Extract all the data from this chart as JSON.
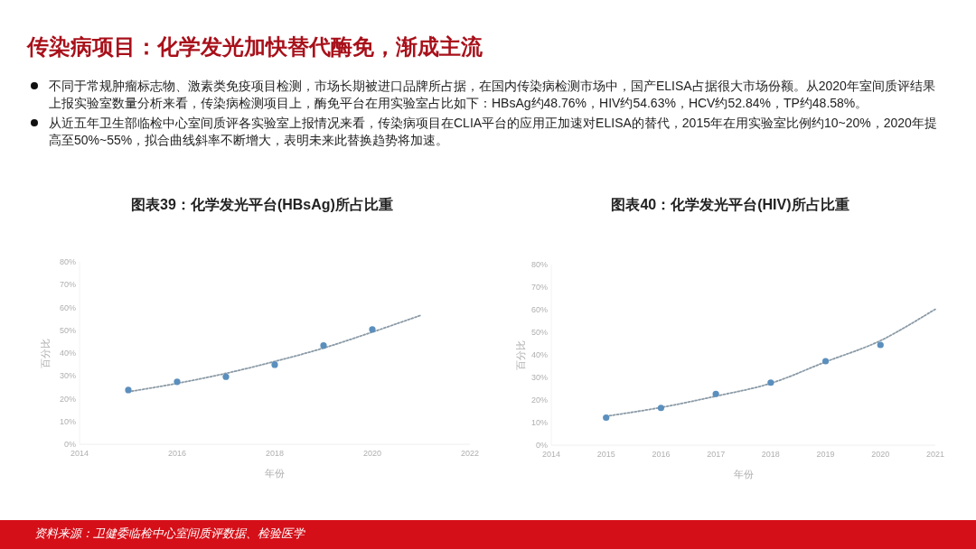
{
  "chart_data": [
    {
      "type": "other",
      "title": "传染病项目：化学发光加快替代酶免，渐成主流",
      "annotations": [
        "不同于常规肿瘤标志物、激素类免疫项目检测，市场长期被进口品牌所占据，在国内传染病检测市场中，国产ELISA占据很大市场份额。从2020年室间质评结果上报实验室数量分析来看，传染病检测项目上，酶免平台在用实验室占比如下：HBsAg约48.76%，HIV约54.63%，HCV约52.84%，TP约48.58%。",
        "从近五年卫生部临检中心室间质评各实验室上报情况来看，传染病项目在CLIA平台的应用正加速对ELISA的替代，2015年在用实验室比例约10~20%，2020年提高至50%~55%，拟合曲线斜率不断增大，表明未来此替换趋势将加速。",
        "资料来源：卫健委临检中心室间质评数据、检验医学"
      ]
    },
    {
      "type": "scatter",
      "title": "图表39：化学发光平台(HBsAg)所占比重",
      "xlabel": "年份",
      "ylabel": "百分比",
      "xlim": [
        2014,
        2022
      ],
      "xticks": [
        2014,
        2016,
        2018,
        2020,
        2022
      ],
      "ylim": [
        0,
        80
      ],
      "yticks": [
        {
          "value": 0,
          "label": "0%"
        },
        {
          "value": 10,
          "label": "10%"
        },
        {
          "value": 20,
          "label": "20%"
        },
        {
          "value": 30,
          "label": "30%"
        },
        {
          "value": 40,
          "label": "40%"
        },
        {
          "value": 50,
          "label": "50%"
        },
        {
          "value": 60,
          "label": "60%"
        },
        {
          "value": 70,
          "label": "70%"
        },
        {
          "value": 80,
          "label": "80%"
        }
      ],
      "series": [
        {
          "type": "scatter",
          "color": "#5b8fbd",
          "marker": "circle",
          "x": [
            2015,
            2016,
            2017,
            2018,
            2019,
            2020
          ],
          "values": [
            23.8,
            27.4,
            29.6,
            34.9,
            43.3,
            50.4
          ]
        },
        {
          "type": "line",
          "color": "#8a9aa6",
          "marker": "none",
          "line_style": "dotted",
          "x": [
            2015,
            2016,
            2017,
            2018,
            2019,
            2020,
            2021
          ],
          "values": [
            23.0,
            26.7,
            31.1,
            36.3,
            42.2,
            49.2,
            56.6
          ]
        }
      ]
    },
    {
      "type": "scatter",
      "title": "图表40：化学发光平台(HIV)所占比重",
      "xlabel": "年份",
      "ylabel": "百分比",
      "xlim": [
        2014,
        2021
      ],
      "xticks": [
        2014,
        2015,
        2016,
        2017,
        2018,
        2019,
        2020,
        2021
      ],
      "ylim": [
        0,
        80
      ],
      "yticks": [
        {
          "value": 0,
          "label": "0%"
        },
        {
          "value": 10,
          "label": "10%"
        },
        {
          "value": 20,
          "label": "20%"
        },
        {
          "value": 30,
          "label": "30%"
        },
        {
          "value": 40,
          "label": "40%"
        },
        {
          "value": 50,
          "label": "50%"
        },
        {
          "value": 60,
          "label": "60%"
        },
        {
          "value": 70,
          "label": "70%"
        },
        {
          "value": 80,
          "label": "80%"
        }
      ],
      "series": [
        {
          "type": "scatter",
          "color": "#5b8fbd",
          "marker": "circle",
          "x": [
            2015,
            2016,
            2017,
            2018,
            2019,
            2020
          ],
          "values": [
            12.2,
            16.5,
            22.7,
            27.7,
            37.2,
            44.4
          ]
        },
        {
          "type": "line",
          "color": "#8a9aa6",
          "marker": "none",
          "line_style": "dotted",
          "x": [
            2015,
            2016,
            2017,
            2018,
            2019,
            2020,
            2021
          ],
          "values": [
            12.8,
            16.7,
            21.7,
            27.4,
            36.9,
            46.3,
            60.2
          ]
        }
      ]
    }
  ]
}
